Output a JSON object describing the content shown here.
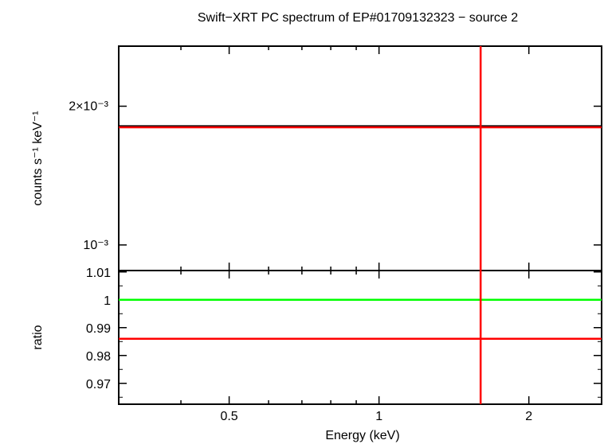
{
  "chart_data": [
    {
      "type": "line",
      "title": "Swift−XRT PC spectrum of EP#01709132323 − source 2",
      "ylabel": "counts s⁻¹ keV⁻¹",
      "xlabel": "",
      "x_scale": "log",
      "y_scale": "log",
      "xlim": [
        0.3,
        2.8
      ],
      "ylim": [
        0.00088,
        0.0027
      ],
      "y_ticks": [
        {
          "value": 0.002,
          "label": "2×10⁻³"
        },
        {
          "value": 0.001,
          "label": "10⁻³"
        }
      ],
      "series": [
        {
          "color": "#000000",
          "y": 0.00181,
          "x": [
            0.3,
            2.8
          ]
        },
        {
          "color": "#ff0000",
          "y": 0.0018,
          "x": [
            0.3,
            2.8
          ]
        }
      ],
      "vertical_line": {
        "color": "#ff0000",
        "x": 1.6
      }
    },
    {
      "type": "line",
      "title": "",
      "ylabel": "ratio",
      "xlabel": "Energy (keV)",
      "x_scale": "log",
      "xlim": [
        0.3,
        2.8
      ],
      "ylim": [
        0.9625,
        1.0105
      ],
      "x_ticks": [
        {
          "value": 0.5,
          "label": "0.5"
        },
        {
          "value": 1,
          "label": "1"
        },
        {
          "value": 2,
          "label": "2"
        }
      ],
      "y_ticks": [
        {
          "value": 1.01,
          "label": "1.01"
        },
        {
          "value": 1.0,
          "label": "1"
        },
        {
          "value": 0.99,
          "label": "0.99"
        },
        {
          "value": 0.98,
          "label": "0.98"
        },
        {
          "value": 0.97,
          "label": "0.97"
        }
      ],
      "series": [
        {
          "color": "#00ff00",
          "y": 1.0,
          "x": [
            0.3,
            2.8
          ]
        },
        {
          "color": "#ff0000",
          "y": 0.986,
          "x": [
            0.3,
            2.8
          ]
        }
      ],
      "vertical_line": {
        "color": "#ff0000",
        "x": 1.6
      }
    }
  ]
}
